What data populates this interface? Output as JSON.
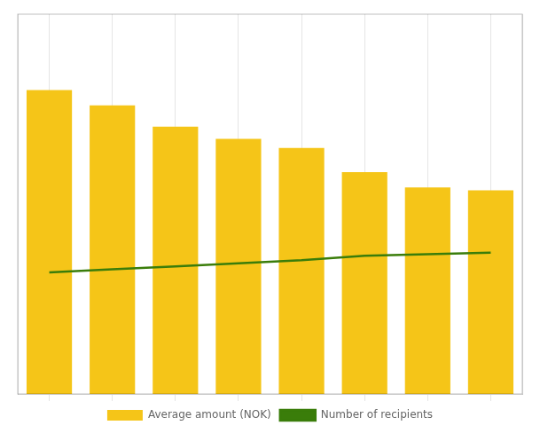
{
  "chart_data": {
    "type": "bar",
    "categories": [
      null,
      null,
      null,
      null,
      null,
      null,
      null,
      null
    ],
    "series": [
      {
        "name": "Average amount (NOK)",
        "type": "bar",
        "color": "#F5C518",
        "values": [
          1.0,
          0.95,
          0.88,
          0.84,
          0.81,
          0.73,
          0.68,
          0.67
        ]
      },
      {
        "name": "Number of recipients",
        "type": "line",
        "color": "#3A7D0A",
        "axis": "y2",
        "values": [
          0.4,
          0.41,
          0.42,
          0.43,
          0.44,
          0.455,
          0.46,
          0.465
        ]
      }
    ],
    "ylim": [
      0,
      1.25
    ],
    "yticks": [],
    "y2lim": [
      0,
      1.25
    ],
    "y2ticks": [],
    "grid": true,
    "legend": "bottom",
    "tick_labels": false
  }
}
